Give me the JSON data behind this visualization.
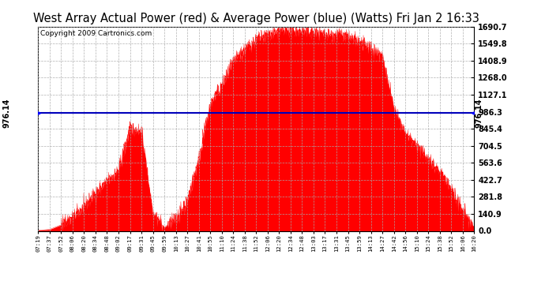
{
  "title": "West Array Actual Power (red) & Average Power (blue) (Watts) Fri Jan 2 16:33",
  "copyright": "Copyright 2009 Cartronics.com",
  "avg_power": 976.14,
  "y_max": 1690.7,
  "y_min": 0.0,
  "y_ticks": [
    0.0,
    140.9,
    281.8,
    422.7,
    563.6,
    704.5,
    845.4,
    986.3,
    1127.1,
    1268.0,
    1408.9,
    1549.8,
    1690.7
  ],
  "x_labels": [
    "07:19",
    "07:37",
    "07:52",
    "08:06",
    "08:20",
    "08:34",
    "08:48",
    "09:02",
    "09:17",
    "09:31",
    "09:45",
    "09:59",
    "10:13",
    "10:27",
    "10:41",
    "10:55",
    "11:10",
    "11:24",
    "11:38",
    "11:52",
    "12:06",
    "12:20",
    "12:34",
    "12:48",
    "13:03",
    "13:17",
    "13:31",
    "13:45",
    "13:59",
    "14:13",
    "14:27",
    "14:42",
    "14:56",
    "15:10",
    "15:24",
    "15:38",
    "15:52",
    "16:06",
    "16:20"
  ],
  "fill_color": "#FF0000",
  "line_color": "#0000BB",
  "background_color": "#FFFFFF",
  "grid_color": "#AAAAAA",
  "title_fontsize": 10.5,
  "copyright_fontsize": 6.5,
  "power_values": [
    5,
    12,
    50,
    110,
    200,
    310,
    410,
    500,
    850,
    820,
    150,
    30,
    100,
    250,
    600,
    1050,
    1200,
    1400,
    1500,
    1580,
    1620,
    1650,
    1660,
    1650,
    1640,
    1630,
    1620,
    1600,
    1560,
    1510,
    1450,
    1000,
    800,
    700,
    600,
    490,
    350,
    160,
    30
  ]
}
